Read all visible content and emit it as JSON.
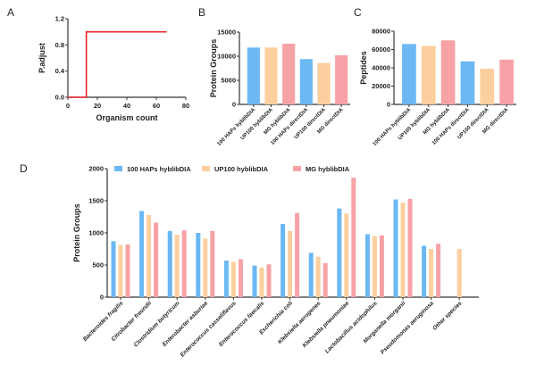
{
  "colors": {
    "blue": "#6bb8f2",
    "orange": "#fccf9e",
    "pink": "#f7a2a6",
    "line": "#e8232a",
    "axis": "#333333"
  },
  "chart_data": [
    {
      "panel": "A",
      "type": "line",
      "xlabel": "Organism count",
      "ylabel": "P.adjust",
      "xlim": [
        0,
        80
      ],
      "ylim": [
        0,
        1.2
      ],
      "xticks": [
        "0",
        "20",
        "40",
        "60",
        "80"
      ],
      "yticks": [
        "0.0",
        "0.4",
        "0.8",
        "1.2"
      ],
      "x": [
        0,
        12.5,
        12.5,
        67
      ],
      "y": [
        0,
        0,
        1,
        1
      ]
    },
    {
      "panel": "B",
      "type": "bar",
      "ylabel": "Protein Groups",
      "ylim": [
        0,
        15000
      ],
      "yticks": [
        "0",
        "5000",
        "10000",
        "15000"
      ],
      "categories": [
        "100 HAPs hyblibDIA",
        "UP100 hyblibDIA",
        "MG hyblibDIA",
        "100 HAPs directDIA",
        "UP100 directDIA",
        "MG directDIA"
      ],
      "values": [
        11800,
        11800,
        12600,
        9400,
        8600,
        10200
      ],
      "bar_colors": [
        "blue",
        "orange",
        "pink",
        "blue",
        "orange",
        "pink"
      ]
    },
    {
      "panel": "C",
      "type": "bar",
      "ylabel": "Peptides",
      "ylim": [
        0,
        80000
      ],
      "yticks": [
        "0",
        "20000",
        "40000",
        "60000",
        "80000"
      ],
      "categories": [
        "100 HAPs hyblibDIA",
        "UP100 hyblibDIA",
        "MG hyblibDIA",
        "100 HAPs directDIA",
        "UP100 directDIA",
        "MG directDIA"
      ],
      "values": [
        66000,
        64000,
        70000,
        47000,
        39000,
        49000
      ],
      "bar_colors": [
        "blue",
        "orange",
        "pink",
        "blue",
        "orange",
        "pink"
      ]
    },
    {
      "panel": "D",
      "type": "bar",
      "ylabel": "Protein Groups",
      "ylim": [
        0,
        2000
      ],
      "yticks": [
        "0",
        "500",
        "1000",
        "1500",
        "2000"
      ],
      "legend_position": "top",
      "categories": [
        "Bacteroides fragilis",
        "Citrobacter freundii",
        "Clostridium butyricum",
        "Enterobacter asburiae",
        "Enterococcus casseliflavus",
        "Enterococcus faecalis",
        "Escherichia coli",
        "Klebsiella aerogenes",
        "Klebsiella pneumoniae",
        "Lactobacillus acidophilus",
        "Morganella morganii",
        "Pseudomonas aeruginosa",
        "Other species"
      ],
      "series": [
        {
          "name": "100 HAPs hyblibDIA",
          "color": "blue",
          "values": [
            870,
            1340,
            1030,
            1000,
            570,
            490,
            1140,
            690,
            1380,
            980,
            1520,
            800,
            null
          ]
        },
        {
          "name": "UP100 hyblibDIA",
          "color": "orange",
          "values": [
            810,
            1280,
            970,
            910,
            550,
            460,
            1030,
            630,
            1300,
            950,
            1470,
            750,
            750
          ]
        },
        {
          "name": "MG hyblibDIA",
          "color": "pink",
          "values": [
            820,
            1160,
            1040,
            1030,
            590,
            510,
            1310,
            530,
            1860,
            960,
            1530,
            830,
            null
          ]
        }
      ]
    }
  ]
}
